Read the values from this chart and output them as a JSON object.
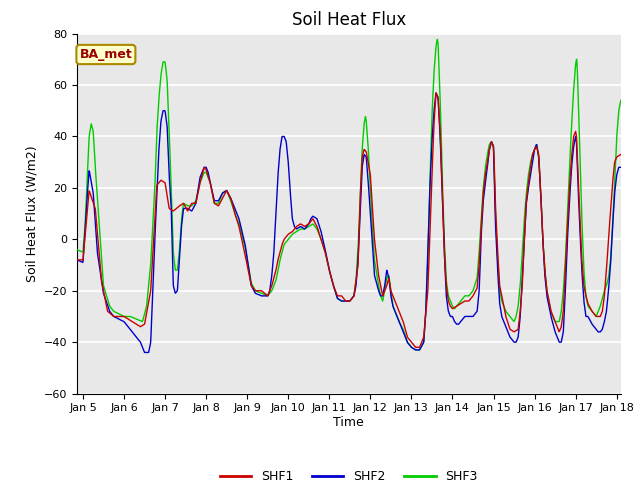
{
  "title": "Soil Heat Flux",
  "ylabel": "Soil Heat Flux (W/m2)",
  "xlabel": "Time",
  "ylim": [
    -60,
    80
  ],
  "yticks": [
    -60,
    -40,
    -20,
    0,
    20,
    40,
    60,
    80
  ],
  "legend_labels": [
    "SHF1",
    "SHF2",
    "SHF3"
  ],
  "line_colors": [
    "#cc0000",
    "#0000cc",
    "#00cc00"
  ],
  "annotation_text": "BA_met",
  "annotation_color": "#990000",
  "annotation_bg": "#ffffcc",
  "annotation_border": "#aa8800",
  "line_width": 1.0,
  "background_color": "#e8e8e8",
  "grid_color": "#ffffff",
  "x_start": 4.85,
  "x_end": 18.1,
  "x_tick_positions": [
    5,
    6,
    7,
    8,
    9,
    10,
    11,
    12,
    13,
    14,
    15,
    16,
    17,
    18
  ],
  "x_tick_labels": [
    "Jan 5",
    "Jan 6",
    "Jan 7",
    "Jan 8",
    "Jan 9",
    "Jan 10",
    "Jan 11",
    "Jan 12",
    "Jan 13",
    "Jan 14",
    "Jan 15",
    "Jan 16",
    "Jan 17",
    "Jan 18"
  ]
}
